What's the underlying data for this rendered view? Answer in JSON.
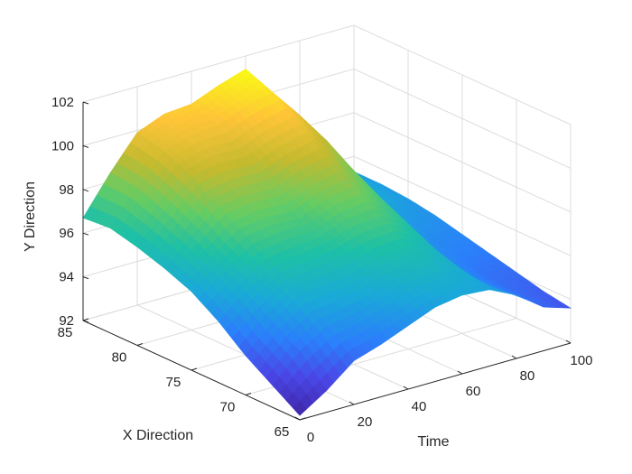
{
  "chart_data": {
    "type": "surface",
    "title": "",
    "xlabel": "Time",
    "ylabel": "X Direction",
    "zlabel": "Y Direction",
    "xlim": [
      0,
      100
    ],
    "ylim": [
      65,
      85
    ],
    "zlim": [
      92,
      102
    ],
    "x_ticks": [
      "0",
      "20",
      "40",
      "60",
      "80",
      "100"
    ],
    "y_ticks": [
      "65",
      "70",
      "75",
      "80",
      "85"
    ],
    "z_ticks": [
      "92",
      "94",
      "96",
      "98",
      "100",
      "102"
    ],
    "grid": true,
    "colormap": "parula",
    "colormap_stops": [
      "#3e26a8",
      "#4a47e6",
      "#2b7ffb",
      "#1aa9d8",
      "#1ec0a6",
      "#66cc63",
      "#c4ba2f",
      "#fec438",
      "#f9fb15"
    ],
    "surface": {
      "time": [
        0,
        10,
        20,
        30,
        40,
        50,
        60,
        70,
        80,
        90,
        100
      ],
      "x_direction": [
        65,
        67.5,
        70,
        72.5,
        75,
        77.5,
        80,
        82.5,
        85
      ],
      "y_direction": [
        [
          92.2,
          93.0,
          93.8,
          94.8,
          95.6,
          96.1,
          96.5,
          96.8,
          96.7
        ],
        [
          93.0,
          94.2,
          95.0,
          95.8,
          96.5,
          97.2,
          97.8,
          98.3,
          98.4
        ],
        [
          94.0,
          95.0,
          95.9,
          96.6,
          97.4,
          98.2,
          99.0,
          99.6,
          99.9
        ],
        [
          94.4,
          95.2,
          96.0,
          96.8,
          97.6,
          98.4,
          99.3,
          100.0,
          100.4
        ],
        [
          94.9,
          95.6,
          96.2,
          97.0,
          97.5,
          98.3,
          99.2,
          100.1,
          100.5
        ],
        [
          95.4,
          96.0,
          96.6,
          97.4,
          98.1,
          98.8,
          99.7,
          100.6,
          101.0
        ],
        [
          95.6,
          96.1,
          96.7,
          97.5,
          98.3,
          99.1,
          100.0,
          100.9,
          101.4
        ],
        [
          95.5,
          95.8,
          96.2,
          96.8,
          97.4,
          98.1,
          98.9,
          99.5,
          99.8
        ],
        [
          94.9,
          94.7,
          94.8,
          95.0,
          95.4,
          96.0,
          96.6,
          97.0,
          97.1
        ],
        [
          94.0,
          94.1,
          94.2,
          94.5,
          94.8,
          95.2,
          95.6,
          95.8,
          95.7
        ],
        [
          93.6,
          93.8,
          94.1,
          94.4,
          94.7,
          95.0,
          95.2,
          95.3,
          95.3
        ]
      ]
    }
  }
}
